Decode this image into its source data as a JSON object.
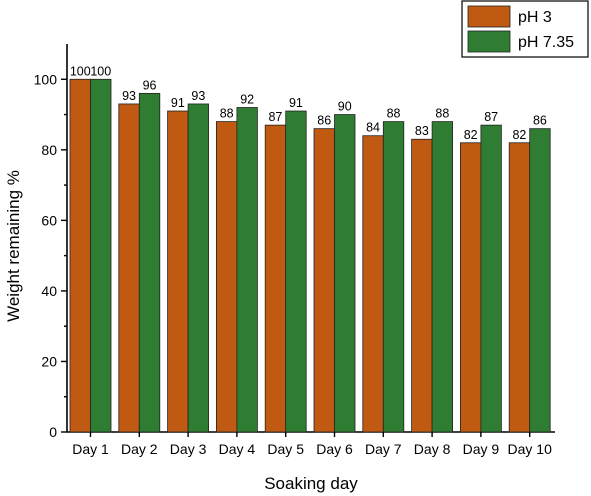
{
  "chart_data": {
    "type": "bar",
    "categories": [
      "Day 1",
      "Day 2",
      "Day 3",
      "Day 4",
      "Day 5",
      "Day 6",
      "Day 7",
      "Day 8",
      "Day 9",
      "Day 10"
    ],
    "series": [
      {
        "name": "pH 3",
        "color": "#C05A12",
        "values": [
          100,
          93,
          91,
          88,
          87,
          86,
          84,
          83,
          82,
          82
        ]
      },
      {
        "name": "pH 7.35",
        "color": "#2E7D32",
        "values": [
          100,
          96,
          93,
          92,
          91,
          90,
          88,
          88,
          87,
          86
        ]
      }
    ],
    "xlabel": "Soaking day",
    "ylabel": "Weight remaining %",
    "ylim": [
      0,
      110
    ],
    "yticks": [
      0,
      20,
      40,
      60,
      80,
      100
    ],
    "legend_position": "top-right",
    "grid": false
  }
}
